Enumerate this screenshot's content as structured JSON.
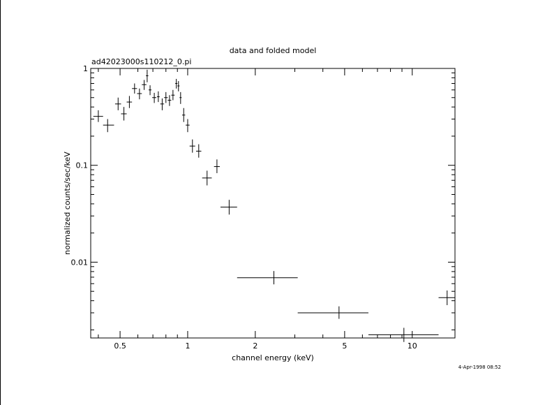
{
  "chart_data": {
    "type": "scatter",
    "title": "data and folded model",
    "subtitle": "ad42023000s110212_0.pi",
    "xlabel": "channel energy (keV)",
    "ylabel": "normalized counts/sec/keV",
    "timestamp": "4-Apr-1998 08:52",
    "x_scale": "log",
    "y_scale": "log",
    "xlim": [
      0.37,
      15.5
    ],
    "ylim": [
      0.00165,
      1.0
    ],
    "grid": false,
    "x_ticks": [
      {
        "value": 0.5,
        "label": "0.5"
      },
      {
        "value": 1,
        "label": "1"
      },
      {
        "value": 2,
        "label": "2"
      },
      {
        "value": 5,
        "label": "5"
      },
      {
        "value": 10,
        "label": "10"
      }
    ],
    "y_ticks": [
      {
        "value": 1,
        "label": "1"
      },
      {
        "value": 0.1,
        "label": "0.1"
      },
      {
        "value": 0.01,
        "label": "0.01"
      }
    ],
    "series": [
      {
        "points": [
          {
            "x": 0.4,
            "x_lo": 0.38,
            "x_hi": 0.42,
            "y": 0.32,
            "y_lo": 0.28,
            "y_hi": 0.37
          },
          {
            "x": 0.44,
            "x_lo": 0.42,
            "x_hi": 0.47,
            "y": 0.26,
            "y_lo": 0.22,
            "y_hi": 0.3
          },
          {
            "x": 0.49,
            "x_lo": 0.475,
            "x_hi": 0.505,
            "y": 0.43,
            "y_lo": 0.37,
            "y_hi": 0.5
          },
          {
            "x": 0.52,
            "x_lo": 0.505,
            "x_hi": 0.535,
            "y": 0.34,
            "y_lo": 0.29,
            "y_hi": 0.4
          },
          {
            "x": 0.55,
            "x_lo": 0.535,
            "x_hi": 0.565,
            "y": 0.45,
            "y_lo": 0.39,
            "y_hi": 0.52
          },
          {
            "x": 0.58,
            "x_lo": 0.565,
            "x_hi": 0.595,
            "y": 0.62,
            "y_lo": 0.55,
            "y_hi": 0.7
          },
          {
            "x": 0.61,
            "x_lo": 0.595,
            "x_hi": 0.625,
            "y": 0.55,
            "y_lo": 0.48,
            "y_hi": 0.62
          },
          {
            "x": 0.64,
            "x_lo": 0.625,
            "x_hi": 0.655,
            "y": 0.68,
            "y_lo": 0.6,
            "y_hi": 0.76
          },
          {
            "x": 0.66,
            "x_lo": 0.652,
            "x_hi": 0.668,
            "y": 0.84,
            "y_lo": 0.72,
            "y_hi": 0.97
          },
          {
            "x": 0.68,
            "x_lo": 0.67,
            "x_hi": 0.69,
            "y": 0.6,
            "y_lo": 0.53,
            "y_hi": 0.67
          },
          {
            "x": 0.71,
            "x_lo": 0.695,
            "x_hi": 0.725,
            "y": 0.5,
            "y_lo": 0.44,
            "y_hi": 0.56
          },
          {
            "x": 0.74,
            "x_lo": 0.73,
            "x_hi": 0.75,
            "y": 0.51,
            "y_lo": 0.45,
            "y_hi": 0.58
          },
          {
            "x": 0.77,
            "x_lo": 0.755,
            "x_hi": 0.785,
            "y": 0.43,
            "y_lo": 0.37,
            "y_hi": 0.49
          },
          {
            "x": 0.8,
            "x_lo": 0.785,
            "x_hi": 0.815,
            "y": 0.5,
            "y_lo": 0.44,
            "y_hi": 0.57
          },
          {
            "x": 0.83,
            "x_lo": 0.815,
            "x_hi": 0.845,
            "y": 0.47,
            "y_lo": 0.41,
            "y_hi": 0.53
          },
          {
            "x": 0.86,
            "x_lo": 0.845,
            "x_hi": 0.875,
            "y": 0.53,
            "y_lo": 0.47,
            "y_hi": 0.6
          },
          {
            "x": 0.89,
            "x_lo": 0.88,
            "x_hi": 0.9,
            "y": 0.7,
            "y_lo": 0.62,
            "y_hi": 0.78
          },
          {
            "x": 0.91,
            "x_lo": 0.9,
            "x_hi": 0.92,
            "y": 0.66,
            "y_lo": 0.58,
            "y_hi": 0.74
          },
          {
            "x": 0.93,
            "x_lo": 0.92,
            "x_hi": 0.94,
            "y": 0.5,
            "y_lo": 0.43,
            "y_hi": 0.57
          },
          {
            "x": 0.96,
            "x_lo": 0.945,
            "x_hi": 0.975,
            "y": 0.33,
            "y_lo": 0.28,
            "y_hi": 0.39
          },
          {
            "x": 1.0,
            "x_lo": 0.98,
            "x_hi": 1.02,
            "y": 0.26,
            "y_lo": 0.22,
            "y_hi": 0.3
          },
          {
            "x": 1.05,
            "x_lo": 1.02,
            "x_hi": 1.08,
            "y": 0.158,
            "y_lo": 0.135,
            "y_hi": 0.185
          },
          {
            "x": 1.12,
            "x_lo": 1.09,
            "x_hi": 1.15,
            "y": 0.14,
            "y_lo": 0.12,
            "y_hi": 0.165
          },
          {
            "x": 1.22,
            "x_lo": 1.16,
            "x_hi": 1.28,
            "y": 0.074,
            "y_lo": 0.062,
            "y_hi": 0.088
          },
          {
            "x": 1.35,
            "x_lo": 1.31,
            "x_hi": 1.39,
            "y": 0.097,
            "y_lo": 0.083,
            "y_hi": 0.115
          },
          {
            "x": 1.53,
            "x_lo": 1.4,
            "x_hi": 1.66,
            "y": 0.037,
            "y_lo": 0.031,
            "y_hi": 0.044
          },
          {
            "x": 2.42,
            "x_lo": 1.66,
            "x_hi": 3.09,
            "y": 0.0069,
            "y_lo": 0.0059,
            "y_hi": 0.0081
          },
          {
            "x": 4.72,
            "x_lo": 3.09,
            "x_hi": 6.38,
            "y": 0.003,
            "y_lo": 0.0026,
            "y_hi": 0.0035
          },
          {
            "x": 9.18,
            "x_lo": 6.38,
            "x_hi": 13.1,
            "y": 0.00178,
            "y_lo": 0.0015,
            "y_hi": 0.0021
          },
          {
            "x": 14.3,
            "x_lo": 13.1,
            "x_hi": 15.5,
            "y": 0.0043,
            "y_lo": 0.0036,
            "y_hi": 0.0051
          }
        ]
      }
    ]
  }
}
